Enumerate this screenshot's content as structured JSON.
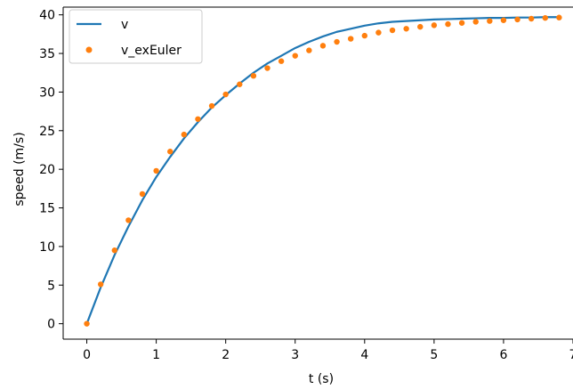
{
  "chart_data": {
    "type": "line",
    "xlabel": "t (s)",
    "ylabel": "speed (m/s)",
    "xlim": [
      -0.34,
      7.0
    ],
    "ylim": [
      -2.0,
      41.0
    ],
    "xticks": [
      0,
      1,
      2,
      3,
      4,
      5,
      6,
      7
    ],
    "xtick_labels": [
      "0",
      "1",
      "2",
      "3",
      "4",
      "5",
      "6",
      "7"
    ],
    "yticks": [
      0,
      5,
      10,
      15,
      20,
      25,
      30,
      35,
      40
    ],
    "ytick_labels": [
      "0",
      "5",
      "10",
      "15",
      "20",
      "25",
      "30",
      "35",
      "40"
    ],
    "grid": false,
    "legend_position": "top-left",
    "series": [
      {
        "name": "v",
        "style": "line",
        "color": "#1f77b4",
        "x": [
          0.0,
          0.2,
          0.4,
          0.6,
          0.8,
          1.0,
          1.2,
          1.4,
          1.6,
          1.8,
          2.0,
          2.2,
          2.4,
          2.6,
          2.8,
          3.0,
          3.2,
          3.4,
          3.6,
          3.8,
          4.0,
          4.2,
          4.4,
          4.6,
          4.8,
          5.0,
          5.2,
          5.4,
          5.6,
          5.8,
          6.0,
          6.2,
          6.4,
          6.6,
          6.8
        ],
        "y": [
          0.0,
          4.7,
          8.9,
          12.6,
          16.0,
          19.0,
          21.6,
          24.0,
          26.1,
          28.0,
          29.6,
          31.1,
          32.5,
          33.7,
          34.7,
          35.7,
          36.5,
          37.2,
          37.8,
          38.2,
          38.6,
          38.9,
          39.1,
          39.2,
          39.3,
          39.4,
          39.45,
          39.5,
          39.55,
          39.6,
          39.6,
          39.65,
          39.65,
          39.7,
          39.7
        ]
      },
      {
        "name": "v_exEuler",
        "style": "markers",
        "color": "#ff7f0e",
        "x": [
          0.0,
          0.2,
          0.4,
          0.6,
          0.8,
          1.0,
          1.2,
          1.4,
          1.6,
          1.8,
          2.0,
          2.2,
          2.4,
          2.6,
          2.8,
          3.0,
          3.2,
          3.4,
          3.6,
          3.8,
          4.0,
          4.2,
          4.4,
          4.6,
          4.8,
          5.0,
          5.2,
          5.4,
          5.6,
          5.8,
          6.0,
          6.2,
          6.4,
          6.6,
          6.8
        ],
        "y": [
          0.0,
          5.1,
          9.5,
          13.4,
          16.8,
          19.8,
          22.3,
          24.5,
          26.5,
          28.2,
          29.7,
          31.0,
          32.1,
          33.1,
          34.0,
          34.7,
          35.4,
          36.0,
          36.5,
          36.9,
          37.3,
          37.7,
          38.0,
          38.2,
          38.45,
          38.65,
          38.8,
          38.95,
          39.1,
          39.2,
          39.3,
          39.4,
          39.5,
          39.6,
          39.65
        ]
      }
    ]
  }
}
